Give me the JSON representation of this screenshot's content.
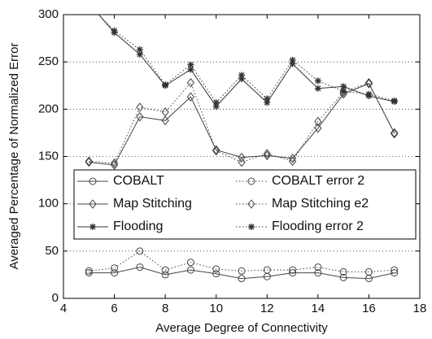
{
  "chart_data": {
    "type": "line",
    "xlabel": "Average Degree of Connectivity",
    "ylabel": "Averaged Percentage of Normalized Error",
    "x": [
      5,
      6,
      7,
      8,
      9,
      10,
      11,
      12,
      13,
      14,
      15,
      16,
      17
    ],
    "series": [
      {
        "name": "COBALT",
        "color": "#444444",
        "marker": "circle",
        "linestyle": "solid",
        "values": [
          27,
          27,
          33,
          25,
          30,
          26,
          21,
          23,
          27,
          27,
          22,
          21,
          27
        ]
      },
      {
        "name": "COBALT error 2",
        "color": "#444444",
        "marker": "circle",
        "linestyle": "dotted",
        "values": [
          29,
          32,
          50,
          30,
          38,
          31,
          29,
          30,
          30,
          33,
          28,
          28,
          30
        ]
      },
      {
        "name": "Map Stitching",
        "color": "#444444",
        "marker": "diamond",
        "linestyle": "solid",
        "values": [
          144,
          141,
          192,
          188,
          213,
          157,
          149,
          151,
          148,
          180,
          216,
          227,
          175
        ]
      },
      {
        "name": "Map Stitching e2",
        "color": "#444444",
        "marker": "diamond",
        "linestyle": "dotted",
        "values": [
          145,
          143,
          202,
          197,
          228,
          156,
          144,
          153,
          145,
          187,
          218,
          228,
          174
        ]
      },
      {
        "name": "Flooding",
        "color": "#333333",
        "marker": "star",
        "linestyle": "solid",
        "values": [
          312,
          281,
          258,
          225,
          242,
          203,
          232,
          207,
          248,
          222,
          224,
          214,
          208
        ]
      },
      {
        "name": "Flooding error 2",
        "color": "#333333",
        "marker": "star",
        "linestyle": "dotted",
        "values": [
          310,
          283,
          263,
          226,
          247,
          207,
          236,
          211,
          252,
          230,
          219,
          216,
          209
        ]
      }
    ],
    "xlim": [
      4,
      18
    ],
    "xticks": [
      4,
      6,
      8,
      10,
      12,
      14,
      16,
      18
    ],
    "ylim": [
      0,
      300
    ],
    "yticks": [
      0,
      50,
      100,
      150,
      200,
      250,
      300
    ],
    "grid": true
  }
}
